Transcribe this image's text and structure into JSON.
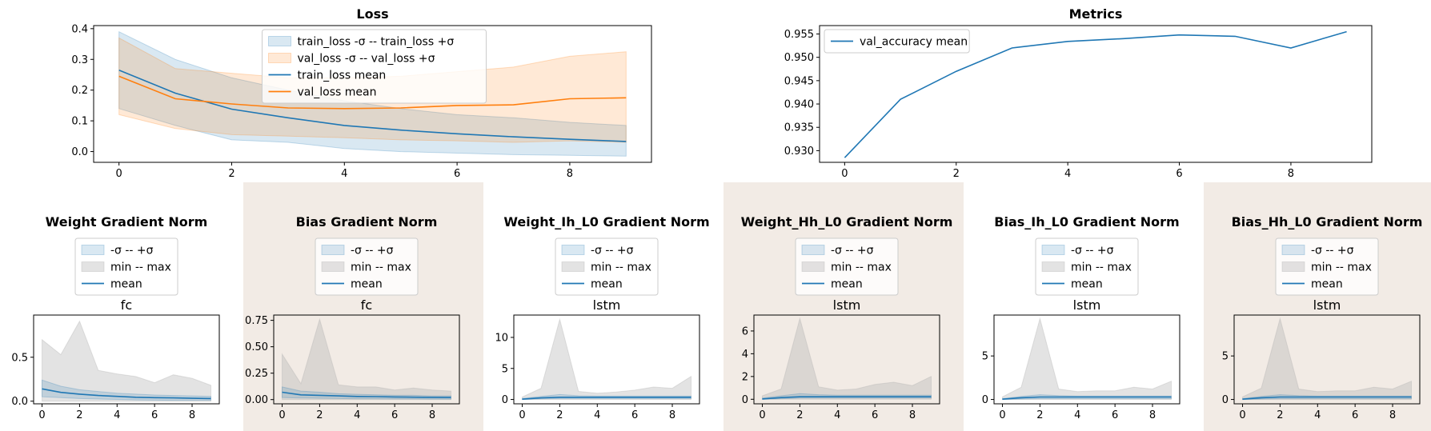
{
  "colors": {
    "blue": "#1f77b4",
    "orange": "#ff7f0e",
    "gray_band": "#b0b0b0",
    "panel_bg": "#f2ebe5"
  },
  "chart_data": [
    {
      "type": "line",
      "title": "Loss",
      "x": [
        0,
        1,
        2,
        3,
        4,
        5,
        6,
        7,
        8,
        9
      ],
      "xticks": [
        0,
        2,
        4,
        6,
        8
      ],
      "yticks": [
        0.0,
        0.1,
        0.2,
        0.3,
        0.4
      ],
      "ytick_labels": [
        "0.0",
        "0.1",
        "0.2",
        "0.3",
        "0.4"
      ],
      "xlim": [
        -0.45,
        9.45
      ],
      "ylim": [
        -0.035,
        0.41
      ],
      "legend_position": "top-center",
      "bands": [
        {
          "name": "train_loss -σ -- train_loss +σ",
          "color": "#1f77b4",
          "lower": [
            0.14,
            0.085,
            0.038,
            0.03,
            0.01,
            0.0,
            -0.005,
            -0.01,
            -0.012,
            -0.015
          ],
          "upper": [
            0.39,
            0.3,
            0.24,
            0.2,
            0.165,
            0.14,
            0.12,
            0.11,
            0.095,
            0.085
          ]
        },
        {
          "name": "val_loss -σ -- val_loss +σ",
          "color": "#ff7f0e",
          "lower": [
            0.12,
            0.075,
            0.055,
            0.05,
            0.045,
            0.038,
            0.035,
            0.03,
            0.035,
            0.03
          ],
          "upper": [
            0.37,
            0.27,
            0.255,
            0.24,
            0.24,
            0.245,
            0.26,
            0.275,
            0.31,
            0.325
          ]
        }
      ],
      "series": [
        {
          "name": "train_loss mean",
          "color": "#1f77b4",
          "values": [
            0.265,
            0.19,
            0.138,
            0.11,
            0.085,
            0.07,
            0.058,
            0.048,
            0.04,
            0.033
          ]
        },
        {
          "name": "val_loss mean",
          "color": "#ff7f0e",
          "values": [
            0.245,
            0.172,
            0.155,
            0.142,
            0.14,
            0.142,
            0.15,
            0.152,
            0.172,
            0.175
          ]
        }
      ]
    },
    {
      "type": "line",
      "title": "Metrics",
      "x": [
        0,
        1,
        2,
        3,
        4,
        5,
        6,
        7,
        8,
        9
      ],
      "xticks": [
        0,
        2,
        4,
        6,
        8
      ],
      "yticks": [
        0.93,
        0.935,
        0.94,
        0.945,
        0.95,
        0.955
      ],
      "ytick_labels": [
        "0.930",
        "0.935",
        "0.940",
        "0.945",
        "0.950",
        "0.955"
      ],
      "xlim": [
        -0.45,
        9.45
      ],
      "ylim": [
        0.9275,
        0.9568
      ],
      "legend_position": "top-left",
      "bands": [],
      "series": [
        {
          "name": "val_accuracy mean",
          "color": "#1f77b4",
          "values": [
            0.9285,
            0.941,
            0.947,
            0.952,
            0.9534,
            0.954,
            0.9548,
            0.9545,
            0.952,
            0.9555
          ]
        }
      ]
    },
    {
      "type": "line",
      "title": "Weight Gradient Norm",
      "subtitle": "fc",
      "x": [
        0,
        1,
        2,
        3,
        4,
        5,
        6,
        7,
        8,
        9
      ],
      "xticks": [
        0,
        2,
        4,
        6,
        8
      ],
      "yticks": [
        0.0,
        0.5
      ],
      "ytick_labels": [
        "0.0",
        "0.5"
      ],
      "xlim": [
        -0.45,
        9.45
      ],
      "ylim": [
        -0.03,
        0.98
      ],
      "legend_position": "top-center",
      "bands": [
        {
          "name": "-σ -- +σ",
          "color": "#1f77b4",
          "lower": [
            0.05,
            0.04,
            0.03,
            0.025,
            0.02,
            0.015,
            0.012,
            0.01,
            0.01,
            0.01
          ],
          "upper": [
            0.24,
            0.17,
            0.13,
            0.11,
            0.09,
            0.08,
            0.07,
            0.065,
            0.06,
            0.055
          ]
        },
        {
          "name": "min -- max",
          "color": "#b0b0b0",
          "lower": [
            0.0,
            0.0,
            0.0,
            0.0,
            0.0,
            0.0,
            0.0,
            0.0,
            0.0,
            0.0
          ],
          "upper": [
            0.7,
            0.53,
            0.91,
            0.35,
            0.31,
            0.28,
            0.21,
            0.3,
            0.26,
            0.18
          ]
        }
      ],
      "series": [
        {
          "name": "mean",
          "color": "#1f77b4",
          "values": [
            0.14,
            0.1,
            0.08,
            0.065,
            0.055,
            0.045,
            0.04,
            0.037,
            0.033,
            0.03
          ]
        }
      ]
    },
    {
      "type": "line",
      "title": "Bias Gradient Norm",
      "subtitle": "fc",
      "x": [
        0,
        1,
        2,
        3,
        4,
        5,
        6,
        7,
        8,
        9
      ],
      "xticks": [
        0,
        2,
        4,
        6,
        8
      ],
      "yticks": [
        0.0,
        0.25,
        0.5,
        0.75
      ],
      "ytick_labels": [
        "0.00",
        "0.25",
        "0.50",
        "0.75"
      ],
      "xlim": [
        -0.45,
        9.45
      ],
      "ylim": [
        -0.04,
        0.8
      ],
      "legend_position": "top-center",
      "bands": [
        {
          "name": "-σ -- +σ",
          "color": "#1f77b4",
          "lower": [
            0.02,
            0.015,
            0.012,
            0.01,
            0.008,
            0.007,
            0.006,
            0.006,
            0.005,
            0.005
          ],
          "upper": [
            0.12,
            0.08,
            0.07,
            0.055,
            0.05,
            0.045,
            0.04,
            0.04,
            0.035,
            0.035
          ]
        },
        {
          "name": "min -- max",
          "color": "#b0b0b0",
          "lower": [
            0.0,
            0.0,
            0.0,
            0.0,
            0.0,
            0.0,
            0.0,
            0.0,
            0.0,
            0.0
          ],
          "upper": [
            0.43,
            0.15,
            0.76,
            0.14,
            0.12,
            0.12,
            0.09,
            0.11,
            0.09,
            0.08
          ]
        }
      ],
      "series": [
        {
          "name": "mean",
          "color": "#1f77b4",
          "values": [
            0.07,
            0.045,
            0.04,
            0.035,
            0.03,
            0.028,
            0.025,
            0.023,
            0.021,
            0.02
          ]
        }
      ]
    },
    {
      "type": "line",
      "title": "Weight_Ih_L0 Gradient Norm",
      "subtitle": "lstm",
      "x": [
        0,
        1,
        2,
        3,
        4,
        5,
        6,
        7,
        8,
        9
      ],
      "xticks": [
        0,
        2,
        4,
        6,
        8
      ],
      "yticks": [
        0,
        5,
        10
      ],
      "ytick_labels": [
        "0",
        "5",
        "10"
      ],
      "xlim": [
        -0.45,
        9.45
      ],
      "ylim": [
        -0.7,
        13.6
      ],
      "legend_position": "top-center",
      "bands": [
        {
          "name": "-σ -- +σ",
          "color": "#1f77b4",
          "lower": [
            0.0,
            0.1,
            0.15,
            0.15,
            0.15,
            0.15,
            0.15,
            0.15,
            0.15,
            0.15
          ],
          "upper": [
            0.15,
            0.5,
            0.8,
            0.6,
            0.55,
            0.55,
            0.55,
            0.55,
            0.55,
            0.55
          ]
        },
        {
          "name": "min -- max",
          "color": "#b0b0b0",
          "lower": [
            0.0,
            0.0,
            0.0,
            0.0,
            0.0,
            0.0,
            0.0,
            0.0,
            0.0,
            0.0
          ],
          "upper": [
            0.4,
            1.8,
            12.9,
            1.3,
            1.0,
            1.2,
            1.5,
            2.0,
            1.8,
            3.7
          ]
        }
      ],
      "series": [
        {
          "name": "mean",
          "color": "#1f77b4",
          "values": [
            0.05,
            0.25,
            0.35,
            0.35,
            0.35,
            0.35,
            0.35,
            0.35,
            0.35,
            0.35
          ]
        }
      ]
    },
    {
      "type": "line",
      "title": "Weight_Hh_L0 Gradient Norm",
      "subtitle": "lstm",
      "x": [
        0,
        1,
        2,
        3,
        4,
        5,
        6,
        7,
        8,
        9
      ],
      "xticks": [
        0,
        2,
        4,
        6,
        8
      ],
      "yticks": [
        0,
        2,
        4,
        6
      ],
      "ytick_labels": [
        "0",
        "2",
        "4",
        "6"
      ],
      "xlim": [
        -0.45,
        9.45
      ],
      "ylim": [
        -0.4,
        7.4
      ],
      "legend_position": "top-center",
      "bands": [
        {
          "name": "-σ -- +σ",
          "color": "#1f77b4",
          "lower": [
            0.0,
            0.05,
            0.1,
            0.1,
            0.1,
            0.1,
            0.1,
            0.1,
            0.1,
            0.1
          ],
          "upper": [
            0.1,
            0.3,
            0.5,
            0.4,
            0.35,
            0.35,
            0.35,
            0.35,
            0.35,
            0.35
          ]
        },
        {
          "name": "min -- max",
          "color": "#b0b0b0",
          "lower": [
            0.0,
            0.0,
            0.0,
            0.0,
            0.0,
            0.0,
            0.0,
            0.0,
            0.0,
            0.0
          ],
          "upper": [
            0.3,
            0.9,
            7.1,
            1.1,
            0.8,
            0.9,
            1.3,
            1.5,
            1.2,
            2.0
          ]
        }
      ],
      "series": [
        {
          "name": "mean",
          "color": "#1f77b4",
          "values": [
            0.03,
            0.15,
            0.22,
            0.22,
            0.22,
            0.22,
            0.22,
            0.22,
            0.22,
            0.22
          ]
        }
      ]
    },
    {
      "type": "line",
      "title": "Bias_Ih_L0 Gradient Norm",
      "subtitle": "lstm",
      "x": [
        0,
        1,
        2,
        3,
        4,
        5,
        6,
        7,
        8,
        9
      ],
      "xticks": [
        0,
        2,
        4,
        6,
        8
      ],
      "yticks": [
        0,
        5
      ],
      "ytick_labels": [
        "0",
        "5"
      ],
      "xlim": [
        -0.45,
        9.45
      ],
      "ylim": [
        -0.5,
        9.7
      ],
      "legend_position": "top-center",
      "bands": [
        {
          "name": "-σ -- +σ",
          "color": "#1f77b4",
          "lower": [
            0.0,
            0.05,
            0.1,
            0.1,
            0.1,
            0.1,
            0.1,
            0.1,
            0.1,
            0.1
          ],
          "upper": [
            0.1,
            0.35,
            0.55,
            0.45,
            0.4,
            0.4,
            0.4,
            0.4,
            0.4,
            0.4
          ]
        },
        {
          "name": "min -- max",
          "color": "#b0b0b0",
          "lower": [
            0.0,
            0.0,
            0.0,
            0.0,
            0.0,
            0.0,
            0.0,
            0.0,
            0.0,
            0.0
          ],
          "upper": [
            0.3,
            1.4,
            9.3,
            1.2,
            0.9,
            1.0,
            1.0,
            1.4,
            1.2,
            2.1
          ]
        }
      ],
      "series": [
        {
          "name": "mean",
          "color": "#1f77b4",
          "values": [
            0.03,
            0.2,
            0.28,
            0.28,
            0.28,
            0.28,
            0.28,
            0.28,
            0.28,
            0.28
          ]
        }
      ]
    },
    {
      "type": "line",
      "title": "Bias_Hh_L0 Gradient Norm",
      "subtitle": "lstm",
      "x": [
        0,
        1,
        2,
        3,
        4,
        5,
        6,
        7,
        8,
        9
      ],
      "xticks": [
        0,
        2,
        4,
        6,
        8
      ],
      "yticks": [
        0,
        5
      ],
      "ytick_labels": [
        "0",
        "5"
      ],
      "xlim": [
        -0.45,
        9.45
      ],
      "ylim": [
        -0.5,
        9.7
      ],
      "legend_position": "top-center",
      "bands": [
        {
          "name": "-σ -- +σ",
          "color": "#1f77b4",
          "lower": [
            0.0,
            0.05,
            0.1,
            0.1,
            0.1,
            0.1,
            0.1,
            0.1,
            0.1,
            0.1
          ],
          "upper": [
            0.1,
            0.35,
            0.55,
            0.45,
            0.4,
            0.4,
            0.4,
            0.4,
            0.4,
            0.4
          ]
        },
        {
          "name": "min -- max",
          "color": "#b0b0b0",
          "lower": [
            0.0,
            0.0,
            0.0,
            0.0,
            0.0,
            0.0,
            0.0,
            0.0,
            0.0,
            0.0
          ],
          "upper": [
            0.3,
            1.3,
            9.3,
            1.2,
            0.9,
            1.0,
            1.0,
            1.4,
            1.2,
            2.1
          ]
        }
      ],
      "series": [
        {
          "name": "mean",
          "color": "#1f77b4",
          "values": [
            0.03,
            0.2,
            0.28,
            0.28,
            0.28,
            0.28,
            0.28,
            0.28,
            0.28,
            0.28
          ]
        }
      ]
    }
  ]
}
